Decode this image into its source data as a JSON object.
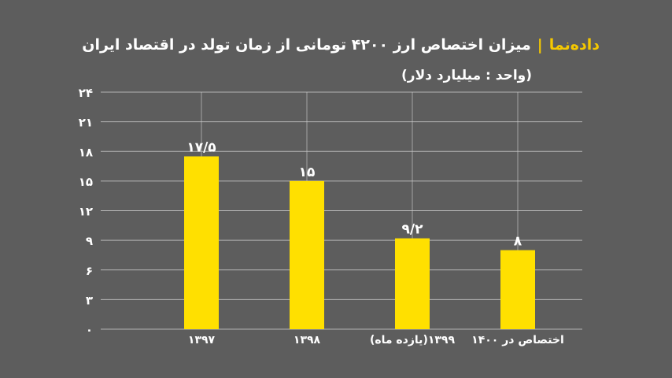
{
  "header": {
    "brand": "داده‌نما",
    "separator": "|",
    "title": "میزان اختصاص ارز ۴۲۰۰ تومانی از زمان تولد در اقتصاد ایران",
    "subtitle": "(واحد : میلیارد دلار)"
  },
  "colors": {
    "background": "#5d5d5d",
    "bar": "#ffe000",
    "brand": "#f5c800",
    "text": "#ffffff",
    "grid": "#d0d0d0"
  },
  "chart_data": {
    "type": "bar",
    "categories": [
      "۱۳۹۷",
      "۱۳۹۸",
      "۱۳۹۹(یازده ماه)",
      "اختصاص در ۱۴۰۰"
    ],
    "values": [
      17.5,
      15,
      9.2,
      8
    ],
    "value_labels": [
      "۱۷/۵",
      "۱۵",
      "۹/۲",
      "۸"
    ],
    "ylim": [
      0,
      24
    ],
    "yticks": [
      0,
      3,
      6,
      9,
      12,
      15,
      18,
      21,
      24
    ],
    "ytick_labels": [
      "۰",
      "۳",
      "۶",
      "۹",
      "۱۲",
      "۱۵",
      "۱۸",
      "۲۱",
      "۲۴"
    ],
    "grid": true,
    "legend": "none"
  }
}
